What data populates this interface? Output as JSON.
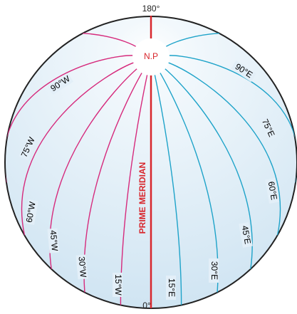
{
  "top_label": "180°",
  "pole_label": "N.P",
  "prime_meridian_label": "PRIME MERIDIAN",
  "bottom_label": "0°",
  "west_meridians": [
    "15°W",
    "30°W",
    "45°W",
    "60°W",
    "75°W",
    "90°W"
  ],
  "east_meridians": [
    "15°E",
    "30°E",
    "45°E",
    "60°E",
    "75°E",
    "90°E"
  ]
}
